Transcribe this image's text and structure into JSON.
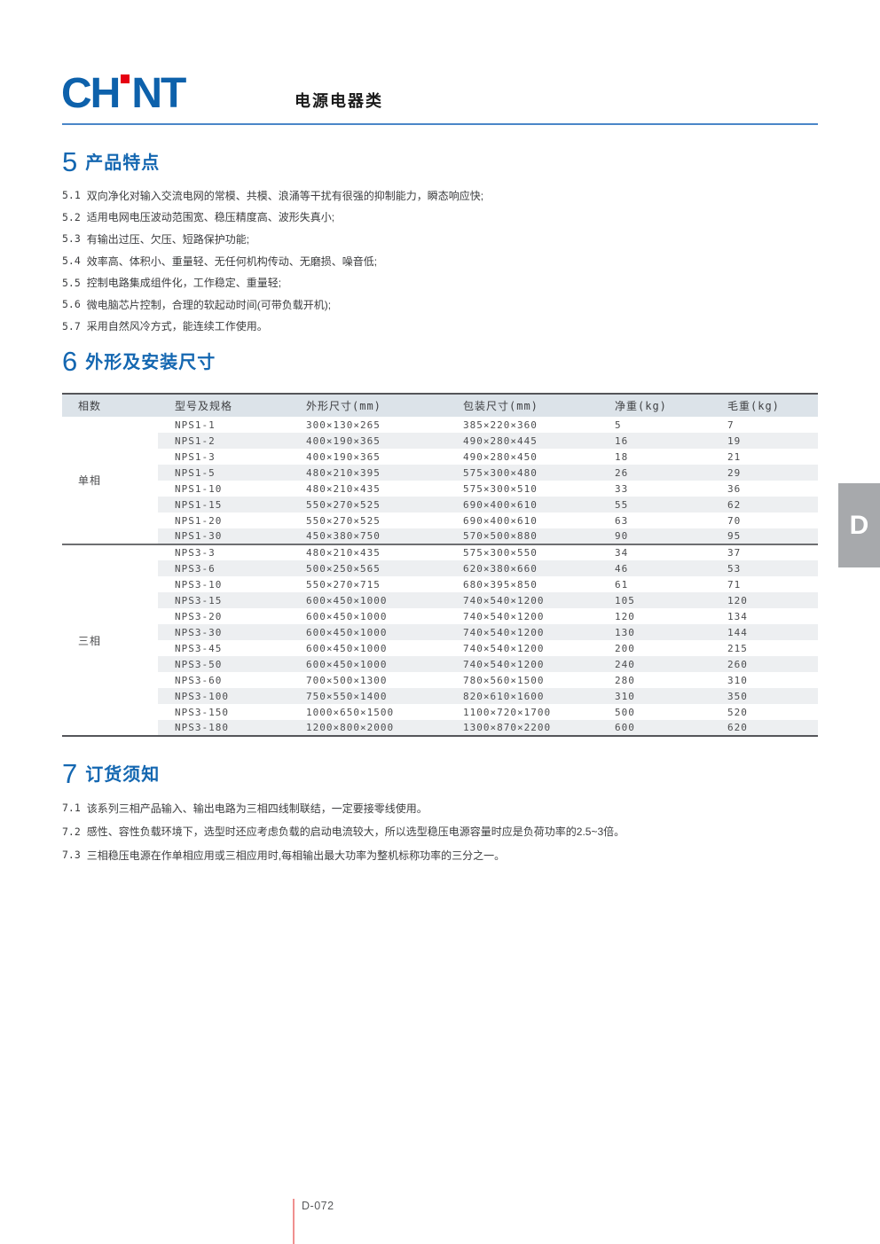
{
  "header": {
    "logo_left": "CH",
    "logo_right": "NT",
    "category": "电源电器类"
  },
  "section5": {
    "number": "5",
    "title": "产品特点",
    "items": [
      {
        "num": "5.1",
        "text": "双向净化对输入交流电网的常模、共模、浪涌等干扰有很强的抑制能力，瞬态响应快;"
      },
      {
        "num": "5.2",
        "text": "适用电网电压波动范围宽、稳压精度高、波形失真小;"
      },
      {
        "num": "5.3",
        "text": "有输出过压、欠压、短路保护功能;"
      },
      {
        "num": "5.4",
        "text": "效率高、体积小、重量轻、无任何机构传动、无磨损、噪音低;"
      },
      {
        "num": "5.5",
        "text": "控制电路集成组件化，工作稳定、重量轻;"
      },
      {
        "num": "5.6",
        "text": "微电脑芯片控制，合理的软起动时间(可带负载开机);"
      },
      {
        "num": "5.7",
        "text": "采用自然风冷方式，能连续工作使用。"
      }
    ]
  },
  "section6": {
    "number": "6",
    "title": "外形及安装尺寸",
    "table": {
      "headers": [
        "相数",
        "型号及规格",
        "外形尺寸(mm)",
        "包装尺寸(mm)",
        "净重(kg)",
        "毛重(kg)"
      ],
      "groups": [
        {
          "phase": "单相",
          "rows": [
            [
              "NPS1-1",
              "300×130×265",
              "385×220×360",
              "5",
              "7"
            ],
            [
              "NPS1-2",
              "400×190×365",
              "490×280×445",
              "16",
              "19"
            ],
            [
              "NPS1-3",
              "400×190×365",
              "490×280×450",
              "18",
              "21"
            ],
            [
              "NPS1-5",
              "480×210×395",
              "575×300×480",
              "26",
              "29"
            ],
            [
              "NPS1-10",
              "480×210×435",
              "575×300×510",
              "33",
              "36"
            ],
            [
              "NPS1-15",
              "550×270×525",
              "690×400×610",
              "55",
              "62"
            ],
            [
              "NPS1-20",
              "550×270×525",
              "690×400×610",
              "63",
              "70"
            ],
            [
              "NPS1-30",
              "450×380×750",
              "570×500×880",
              "90",
              "95"
            ]
          ]
        },
        {
          "phase": "三相",
          "rows": [
            [
              "NPS3-3",
              "480×210×435",
              "575×300×550",
              "34",
              "37"
            ],
            [
              "NPS3-6",
              "500×250×565",
              "620×380×660",
              "46",
              "53"
            ],
            [
              "NPS3-10",
              "550×270×715",
              "680×395×850",
              "61",
              "71"
            ],
            [
              "NPS3-15",
              "600×450×1000",
              "740×540×1200",
              "105",
              "120"
            ],
            [
              "NPS3-20",
              "600×450×1000",
              "740×540×1200",
              "120",
              "134"
            ],
            [
              "NPS3-30",
              "600×450×1000",
              "740×540×1200",
              "130",
              "144"
            ],
            [
              "NPS3-45",
              "600×450×1000",
              "740×540×1200",
              "200",
              "215"
            ],
            [
              "NPS3-50",
              "600×450×1000",
              "740×540×1200",
              "240",
              "260"
            ],
            [
              "NPS3-60",
              "700×500×1300",
              "780×560×1500",
              "280",
              "310"
            ],
            [
              "NPS3-100",
              "750×550×1400",
              "820×610×1600",
              "310",
              "350"
            ],
            [
              "NPS3-150",
              "1000×650×1500",
              "1100×720×1700",
              "500",
              "520"
            ],
            [
              "NPS3-180",
              "1200×800×2000",
              "1300×870×2200",
              "600",
              "620"
            ]
          ]
        }
      ]
    }
  },
  "section7": {
    "number": "7",
    "title": "订货须知",
    "items": [
      {
        "num": "7.1",
        "text": "该系列三相产品输入、输出电路为三相四线制联结，一定要接零线使用。"
      },
      {
        "num": "7.2",
        "text": "感性、容性负载环境下，选型时还应考虑负载的启动电流较大，所以选型稳压电源容量时应是负荷功率的2.5~3倍。"
      },
      {
        "num": "7.3",
        "text": "三相稳压电源在作单相应用或三相应用时,每相输出最大功率为整机标称功率的三分之一。"
      }
    ]
  },
  "side_tab": {
    "label": "D"
  },
  "footer": {
    "page": "D-072"
  },
  "colors": {
    "brand_blue": "#0d61ab",
    "logo_red": "#e60012",
    "heading_blue": "#1467b1",
    "rule_blue": "#4a86c8",
    "table_header_bg": "#dce3e9",
    "stripe_bg": "#edeff1",
    "table_border_dark": "#55565a",
    "side_tab_gray": "#a7a9ac",
    "footer_line_red": "#f0908f"
  }
}
